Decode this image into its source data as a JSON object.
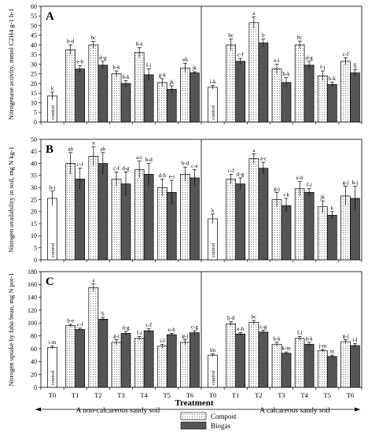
{
  "chart_data": {
    "type": "bar",
    "categories": [
      "T0",
      "T1",
      "T2",
      "T3",
      "T4",
      "T5",
      "T6",
      "T0",
      "T1",
      "T2",
      "T3",
      "T4",
      "T5",
      "T6"
    ],
    "control_label": "control",
    "xlabel": "Treatment",
    "soils": [
      "A non-calcareous sandy soil",
      "A calcareous sandy soil"
    ],
    "legend": [
      {
        "name": "Compost",
        "pattern": "dotted"
      },
      {
        "name": "Biogas",
        "color": "#555555"
      }
    ],
    "panels": [
      {
        "label": "A",
        "ylabel": "Nitrogenase activity, mmol C2H4 g-1 h-1",
        "ylim": [
          0,
          60
        ],
        "yticks": [
          0,
          5,
          10,
          15,
          20,
          25,
          30,
          35,
          40,
          45,
          50,
          55,
          60
        ],
        "control": [
          {
            "value": 13.5,
            "err": 2,
            "letter": "k"
          },
          {
            "value": 18,
            "err": 1,
            "letter": "i-k"
          }
        ],
        "series": [
          {
            "name": "Compost",
            "values": [
              37.5,
              40,
              25,
              36,
              20.5,
              28,
              40,
              51.5,
              27.5,
              40,
              24,
              31.5
            ],
            "errors": [
              2.5,
              1.8,
              1.5,
              2.5,
              2,
              2.5,
              3,
              3,
              2.5,
              2,
              2.5,
              1.8
            ],
            "letters": [
              "b-d",
              "bc",
              "h-k",
              "b-e",
              "g-k",
              "eh",
              "bc",
              "a",
              "e-i",
              "bc",
              "f-j",
              "c-f"
            ]
          },
          {
            "name": "Biogas",
            "values": [
              27.5,
              29.5,
              20,
              24.5,
              17,
              25.5,
              31.5,
              41,
              20.5,
              29.5,
              19.5,
              25.5
            ],
            "errors": [
              1.8,
              2,
              1.5,
              3,
              1.8,
              0.6,
              1.5,
              2,
              2.5,
              2,
              1.2,
              1.8
            ],
            "letters": [
              "e-h",
              "d-g",
              "h-k",
              "f-j",
              "jk",
              "jk",
              "c-f",
              "b",
              "h-k",
              "d-g",
              "h-k",
              "fj"
            ]
          }
        ]
      },
      {
        "label": "B",
        "ylabel": "Nitrogen availability in soil, mg N kg-1",
        "ylim": [
          0,
          50
        ],
        "yticks": [
          0,
          5,
          10,
          15,
          20,
          25,
          30,
          35,
          40,
          45,
          50
        ],
        "control": [
          {
            "value": 25.5,
            "err": 3,
            "letter": "h-j"
          },
          {
            "value": 17,
            "err": 2,
            "letter": "k"
          }
        ],
        "series": [
          {
            "name": "Compost",
            "values": [
              40,
              43,
              33.5,
              37.5,
              30,
              35.5,
              33.5,
              42,
              25,
              29.5,
              22,
              26.5
            ],
            "errors": [
              4.5,
              4,
              3,
              3.5,
              3.5,
              3,
              2,
              2,
              3,
              3,
              2.5,
              4
            ],
            "letters": [
              "ab",
              "a",
              "c-f",
              "a-c",
              "d-h",
              "b-d",
              "c-f",
              "a",
              "g-j",
              "e-h",
              "jk",
              "g-j"
            ]
          },
          {
            "name": "Biogas",
            "values": [
              33.5,
              40,
              31.5,
              35.5,
              28,
              34,
              31.5,
              38,
              22.5,
              28,
              18.5,
              25.5
            ],
            "errors": [
              4.5,
              4.5,
              5,
              4.5,
              5,
              3.5,
              2.5,
              2.5,
              3,
              1.5,
              1.5,
              5
            ],
            "letters": [
              "c-f",
              "ab",
              "d-g",
              "b-d",
              "e-i",
              "c-e",
              "d-g",
              "a-c",
              "i-k",
              "f-i",
              "k",
              "h-j"
            ]
          }
        ]
      },
      {
        "label": "C",
        "ylabel": "Nitrogen uptake by faba bean, mg N pot-1",
        "ylim": [
          0,
          180
        ],
        "yticks": [
          0,
          20,
          40,
          60,
          80,
          100,
          120,
          140,
          160,
          180
        ],
        "control": [
          {
            "value": 62,
            "err": 2,
            "letter": "i-m"
          },
          {
            "value": 50,
            "err": 2,
            "letter": "lm"
          }
        ],
        "series": [
          {
            "name": "Compost",
            "values": [
              96,
              155,
              70,
              76,
              64,
              70,
              99,
              101,
              67,
              76,
              57,
              71
            ],
            "errors": [
              2,
              6,
              4,
              3,
              3,
              4,
              3,
              3,
              3,
              3,
              2,
              3
            ],
            "letters": [
              "b-e",
              "a",
              "g-j",
              "f-i",
              "i-l",
              "g-j",
              "b-d",
              "bc",
              "h-k",
              "f-i",
              "j-m",
              "g-j"
            ]
          },
          {
            "name": "Biogas",
            "values": [
              90,
              106,
              84,
              88,
              82,
              85,
              83,
              86,
              53,
              67,
              48,
              65
            ],
            "errors": [
              2,
              3,
              3,
              3,
              2,
              3,
              2,
              3,
              2,
              3,
              2,
              3
            ],
            "letters": [
              "c-f",
              "b",
              "d-g",
              "c-f",
              "e-h",
              "c-g",
              "e-h",
              "c-g",
              "k-m",
              "h-k",
              "m",
              "i-l"
            ]
          }
        ]
      }
    ]
  }
}
